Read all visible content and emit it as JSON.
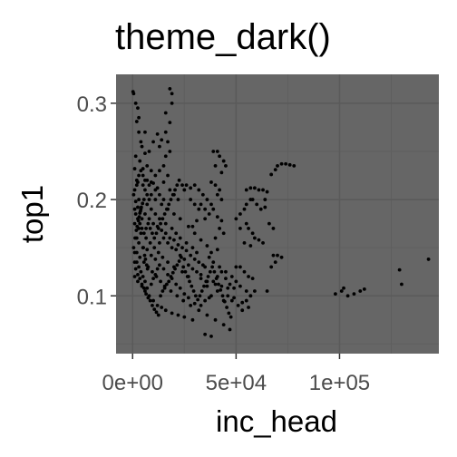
{
  "chart_data": {
    "type": "scatter",
    "title": "theme_dark()",
    "xlabel": "inc_head",
    "ylabel": "top1",
    "xlim": [
      -8000,
      148000
    ],
    "ylim": [
      0.04,
      0.33
    ],
    "x_ticks": [
      0,
      50000,
      100000
    ],
    "x_tick_labels": [
      "0e+00",
      "5e+04",
      "1e+05"
    ],
    "y_ticks": [
      0.1,
      0.2,
      0.3
    ],
    "y_tick_labels": [
      "0.1",
      "0.2",
      "0.3"
    ],
    "grid": true,
    "legend": "none",
    "colors": {
      "panel": "#666666",
      "grid_major": "#5a5a5a",
      "grid_minor": "#5f5f5f",
      "points": "#000000",
      "tick_text": "#4d4d4d",
      "axis_text": "#000000"
    },
    "points": [
      [
        200,
        0.312
      ],
      [
        500,
        0.31
      ],
      [
        2000,
        0.281
      ],
      [
        3000,
        0.27
      ],
      [
        4500,
        0.255
      ],
      [
        1500,
        0.245
      ],
      [
        3500,
        0.24
      ],
      [
        1000,
        0.232
      ],
      [
        5000,
        0.225
      ],
      [
        2500,
        0.218
      ],
      [
        6000,
        0.22
      ],
      [
        8000,
        0.215
      ],
      [
        10000,
        0.217
      ],
      [
        12000,
        0.212
      ],
      [
        15000,
        0.218
      ],
      [
        18000,
        0.21
      ],
      [
        20000,
        0.205
      ],
      [
        22000,
        0.2
      ],
      [
        25000,
        0.21
      ],
      [
        28000,
        0.2
      ],
      [
        30000,
        0.195
      ],
      [
        32000,
        0.19
      ],
      [
        35000,
        0.18
      ],
      [
        5500,
        0.2
      ],
      [
        7000,
        0.195
      ],
      [
        9000,
        0.19
      ],
      [
        11000,
        0.185
      ],
      [
        13000,
        0.18
      ],
      [
        16000,
        0.175
      ],
      [
        19000,
        0.17
      ],
      [
        21000,
        0.165
      ],
      [
        23000,
        0.16
      ],
      [
        26000,
        0.155
      ],
      [
        29000,
        0.15
      ],
      [
        31000,
        0.145
      ],
      [
        1000,
        0.175
      ],
      [
        3000,
        0.17
      ],
      [
        4000,
        0.165
      ],
      [
        6500,
        0.16
      ],
      [
        8500,
        0.155
      ],
      [
        10500,
        0.15
      ],
      [
        12500,
        0.145
      ],
      [
        14500,
        0.14
      ],
      [
        17000,
        0.135
      ],
      [
        20000,
        0.13
      ],
      [
        24000,
        0.125
      ],
      [
        27000,
        0.12
      ],
      [
        33000,
        0.118
      ],
      [
        36000,
        0.115
      ],
      [
        40000,
        0.112
      ],
      [
        43000,
        0.11
      ],
      [
        46000,
        0.108
      ],
      [
        500,
        0.15
      ],
      [
        2000,
        0.145
      ],
      [
        3500,
        0.14
      ],
      [
        5500,
        0.135
      ],
      [
        7500,
        0.13
      ],
      [
        9500,
        0.125
      ],
      [
        11500,
        0.12
      ],
      [
        13500,
        0.115
      ],
      [
        15500,
        0.11
      ],
      [
        18500,
        0.105
      ],
      [
        21500,
        0.1
      ],
      [
        24500,
        0.095
      ],
      [
        28000,
        0.09
      ],
      [
        32000,
        0.085
      ],
      [
        36000,
        0.08
      ],
      [
        40000,
        0.075
      ],
      [
        44000,
        0.07
      ],
      [
        47000,
        0.065
      ],
      [
        35000,
        0.06
      ],
      [
        38000,
        0.058
      ],
      [
        1000,
        0.12
      ],
      [
        2500,
        0.115
      ],
      [
        4500,
        0.11
      ],
      [
        6000,
        0.105
      ],
      [
        8000,
        0.1
      ],
      [
        10000,
        0.095
      ],
      [
        12000,
        0.09
      ],
      [
        14000,
        0.088
      ],
      [
        16000,
        0.085
      ],
      [
        19000,
        0.082
      ],
      [
        22000,
        0.08
      ],
      [
        25000,
        0.078
      ],
      [
        29000,
        0.075
      ],
      [
        1500,
        0.198
      ],
      [
        2500,
        0.192
      ],
      [
        3500,
        0.186
      ],
      [
        4500,
        0.18
      ],
      [
        500,
        0.205
      ],
      [
        1000,
        0.21
      ],
      [
        2000,
        0.215
      ],
      [
        9000,
        0.205
      ],
      [
        11000,
        0.2
      ],
      [
        14000,
        0.195
      ],
      [
        17000,
        0.19
      ],
      [
        20000,
        0.185
      ],
      [
        23000,
        0.18
      ],
      [
        27000,
        0.172
      ],
      [
        30000,
        0.165
      ],
      [
        33000,
        0.158
      ],
      [
        37000,
        0.14
      ],
      [
        39000,
        0.135
      ],
      [
        42000,
        0.13
      ],
      [
        45000,
        0.125
      ],
      [
        48000,
        0.12
      ],
      [
        50000,
        0.115
      ],
      [
        52000,
        0.11
      ],
      [
        55000,
        0.105
      ],
      [
        57000,
        0.1
      ],
      [
        49000,
        0.098
      ],
      [
        53000,
        0.093
      ],
      [
        56000,
        0.088
      ],
      [
        38000,
        0.1
      ],
      [
        41000,
        0.105
      ],
      [
        44000,
        0.095
      ],
      [
        39000,
        0.25
      ],
      [
        41000,
        0.25
      ],
      [
        42000,
        0.245
      ],
      [
        44000,
        0.24
      ],
      [
        45000,
        0.235
      ],
      [
        43000,
        0.228
      ],
      [
        40000,
        0.235
      ],
      [
        38000,
        0.218
      ],
      [
        40000,
        0.215
      ],
      [
        42000,
        0.21
      ],
      [
        41000,
        0.205
      ],
      [
        43000,
        0.2
      ],
      [
        38000,
        0.195
      ],
      [
        39000,
        0.19
      ],
      [
        41000,
        0.182
      ],
      [
        43000,
        0.178
      ],
      [
        42000,
        0.17
      ],
      [
        44000,
        0.165
      ],
      [
        40000,
        0.16
      ],
      [
        38000,
        0.145
      ],
      [
        36000,
        0.152
      ],
      [
        41000,
        0.148
      ],
      [
        36000,
        0.11
      ],
      [
        39000,
        0.115
      ],
      [
        41000,
        0.12
      ],
      [
        43000,
        0.125
      ],
      [
        45000,
        0.118
      ],
      [
        47000,
        0.112
      ],
      [
        49000,
        0.108
      ],
      [
        46000,
        0.1
      ],
      [
        48000,
        0.095
      ],
      [
        51000,
        0.09
      ],
      [
        53000,
        0.085
      ],
      [
        55000,
        0.095
      ],
      [
        50000,
        0.18
      ],
      [
        52000,
        0.185
      ],
      [
        54000,
        0.19
      ],
      [
        55000,
        0.195
      ],
      [
        57000,
        0.2
      ],
      [
        58000,
        0.2
      ],
      [
        60000,
        0.195
      ],
      [
        62000,
        0.19
      ],
      [
        64000,
        0.192
      ],
      [
        55000,
        0.175
      ],
      [
        56000,
        0.17
      ],
      [
        58000,
        0.165
      ],
      [
        59000,
        0.16
      ],
      [
        61000,
        0.158
      ],
      [
        63000,
        0.155
      ],
      [
        54000,
        0.155
      ],
      [
        57000,
        0.152
      ],
      [
        52000,
        0.17
      ],
      [
        55000,
        0.21
      ],
      [
        57000,
        0.212
      ],
      [
        59000,
        0.212
      ],
      [
        61000,
        0.21
      ],
      [
        63000,
        0.21
      ],
      [
        65000,
        0.208
      ],
      [
        56000,
        0.12
      ],
      [
        58000,
        0.118
      ],
      [
        54000,
        0.125
      ],
      [
        52000,
        0.13
      ],
      [
        50000,
        0.13
      ],
      [
        59000,
        0.105
      ],
      [
        57000,
        0.1
      ],
      [
        65000,
        0.105
      ],
      [
        70000,
        0.235
      ],
      [
        72000,
        0.237
      ],
      [
        74000,
        0.237
      ],
      [
        76000,
        0.236
      ],
      [
        78000,
        0.235
      ],
      [
        69000,
        0.231
      ],
      [
        67000,
        0.226
      ],
      [
        68000,
        0.142
      ],
      [
        70000,
        0.142
      ],
      [
        72000,
        0.14
      ],
      [
        67000,
        0.13
      ],
      [
        69000,
        0.135
      ],
      [
        64000,
        0.2
      ],
      [
        66000,
        0.175
      ],
      [
        68000,
        0.17
      ],
      [
        98000,
        0.102
      ],
      [
        101000,
        0.105
      ],
      [
        102000,
        0.108
      ],
      [
        104000,
        0.1
      ],
      [
        107000,
        0.102
      ],
      [
        110000,
        0.105
      ],
      [
        112000,
        0.107
      ],
      [
        129000,
        0.127
      ],
      [
        130000,
        0.112
      ],
      [
        143000,
        0.138
      ],
      [
        1000,
        0.145
      ],
      [
        2000,
        0.135
      ],
      [
        3000,
        0.13
      ],
      [
        4000,
        0.125
      ],
      [
        5000,
        0.12
      ],
      [
        6000,
        0.115
      ],
      [
        7000,
        0.108
      ],
      [
        9000,
        0.112
      ],
      [
        10000,
        0.118
      ],
      [
        11000,
        0.122
      ],
      [
        12000,
        0.128
      ],
      [
        13000,
        0.132
      ],
      [
        15000,
        0.128
      ],
      [
        17000,
        0.122
      ],
      [
        19000,
        0.118
      ],
      [
        21000,
        0.112
      ],
      [
        23000,
        0.108
      ],
      [
        25000,
        0.102
      ],
      [
        27000,
        0.098
      ],
      [
        30000,
        0.092
      ],
      [
        33000,
        0.09
      ],
      [
        35000,
        0.095
      ],
      [
        37000,
        0.098
      ],
      [
        2000,
        0.16
      ],
      [
        3000,
        0.155
      ],
      [
        5000,
        0.15
      ],
      [
        7000,
        0.148
      ],
      [
        9000,
        0.142
      ],
      [
        11000,
        0.138
      ],
      [
        13000,
        0.155
      ],
      [
        15000,
        0.16
      ],
      [
        17000,
        0.155
      ],
      [
        19000,
        0.15
      ],
      [
        21000,
        0.148
      ],
      [
        23000,
        0.142
      ],
      [
        25000,
        0.138
      ],
      [
        27000,
        0.132
      ],
      [
        29000,
        0.128
      ],
      [
        31000,
        0.125
      ],
      [
        33000,
        0.122
      ],
      [
        35000,
        0.13
      ],
      [
        4000,
        0.19
      ],
      [
        6000,
        0.185
      ],
      [
        8000,
        0.18
      ],
      [
        10000,
        0.175
      ],
      [
        12000,
        0.172
      ],
      [
        14000,
        0.168
      ],
      [
        16000,
        0.165
      ],
      [
        18000,
        0.16
      ],
      [
        20000,
        0.158
      ],
      [
        22000,
        0.153
      ],
      [
        24000,
        0.15
      ],
      [
        26000,
        0.147
      ],
      [
        28000,
        0.142
      ],
      [
        30000,
        0.138
      ],
      [
        32000,
        0.135
      ],
      [
        34000,
        0.132
      ],
      [
        7000,
        0.235
      ],
      [
        9000,
        0.23
      ],
      [
        11000,
        0.225
      ],
      [
        13000,
        0.23
      ],
      [
        15000,
        0.235
      ],
      [
        17000,
        0.225
      ],
      [
        16000,
        0.245
      ],
      [
        18000,
        0.25
      ],
      [
        17000,
        0.26
      ],
      [
        16000,
        0.27
      ],
      [
        18000,
        0.28
      ],
      [
        16000,
        0.29
      ],
      [
        19000,
        0.3
      ],
      [
        19000,
        0.31
      ],
      [
        18000,
        0.315
      ],
      [
        14000,
        0.262
      ],
      [
        13000,
        0.255
      ],
      [
        12000,
        0.268
      ],
      [
        10000,
        0.26
      ],
      [
        8000,
        0.25
      ],
      [
        6000,
        0.248
      ],
      [
        4000,
        0.26
      ],
      [
        6000,
        0.27
      ],
      [
        3000,
        0.285
      ],
      [
        1500,
        0.3
      ],
      [
        2500,
        0.295
      ],
      [
        24000,
        0.215
      ],
      [
        26000,
        0.215
      ],
      [
        28000,
        0.212
      ],
      [
        30000,
        0.215
      ],
      [
        32000,
        0.21
      ],
      [
        34000,
        0.205
      ],
      [
        36000,
        0.2
      ],
      [
        33000,
        0.195
      ],
      [
        35000,
        0.19
      ],
      [
        37000,
        0.185
      ],
      [
        31000,
        0.178
      ],
      [
        29000,
        0.172
      ],
      [
        2000,
        0.22
      ],
      [
        3000,
        0.225
      ],
      [
        4000,
        0.23
      ],
      [
        5000,
        0.232
      ],
      [
        6000,
        0.21
      ],
      [
        7000,
        0.205
      ],
      [
        8000,
        0.2
      ],
      [
        1000,
        0.19
      ],
      [
        1500,
        0.185
      ],
      [
        2500,
        0.18
      ],
      [
        3500,
        0.175
      ],
      [
        4500,
        0.17
      ],
      [
        5500,
        0.165
      ],
      [
        6500,
        0.17
      ],
      [
        7500,
        0.175
      ],
      [
        8500,
        0.17
      ],
      [
        9500,
        0.165
      ],
      [
        10500,
        0.16
      ],
      [
        11500,
        0.165
      ],
      [
        12500,
        0.17
      ],
      [
        13500,
        0.175
      ],
      [
        14500,
        0.18
      ],
      [
        15500,
        0.185
      ],
      [
        16500,
        0.19
      ],
      [
        17500,
        0.195
      ],
      [
        18500,
        0.2
      ],
      [
        19500,
        0.205
      ],
      [
        20500,
        0.21
      ],
      [
        21500,
        0.215
      ],
      [
        22500,
        0.22
      ],
      [
        1000,
        0.135
      ],
      [
        1500,
        0.128
      ],
      [
        2500,
        0.122
      ],
      [
        3500,
        0.118
      ],
      [
        4500,
        0.112
      ],
      [
        5500,
        0.108
      ],
      [
        6500,
        0.102
      ],
      [
        7500,
        0.098
      ],
      [
        8500,
        0.095
      ],
      [
        9500,
        0.09
      ],
      [
        10500,
        0.086
      ],
      [
        11500,
        0.083
      ],
      [
        12500,
        0.08
      ],
      [
        13500,
        0.1
      ],
      [
        14500,
        0.105
      ],
      [
        15500,
        0.108
      ],
      [
        16500,
        0.112
      ],
      [
        17500,
        0.115
      ],
      [
        18500,
        0.12
      ],
      [
        19500,
        0.124
      ],
      [
        20500,
        0.128
      ],
      [
        21500,
        0.132
      ],
      [
        22500,
        0.136
      ],
      [
        23500,
        0.14
      ],
      [
        24500,
        0.13
      ],
      [
        25500,
        0.125
      ],
      [
        26500,
        0.12
      ],
      [
        27500,
        0.115
      ],
      [
        28500,
        0.11
      ],
      [
        29500,
        0.105
      ],
      [
        30500,
        0.1
      ],
      [
        31500,
        0.096
      ],
      [
        32500,
        0.1
      ],
      [
        33500,
        0.105
      ],
      [
        34500,
        0.11
      ],
      [
        35500,
        0.115
      ],
      [
        36500,
        0.12
      ],
      [
        37500,
        0.125
      ],
      [
        38500,
        0.13
      ],
      [
        39500,
        0.125
      ],
      [
        40500,
        0.118
      ],
      [
        41500,
        0.112
      ],
      [
        42500,
        0.106
      ],
      [
        43500,
        0.1
      ],
      [
        44500,
        0.094
      ],
      [
        45500,
        0.088
      ],
      [
        46500,
        0.082
      ],
      [
        47500,
        0.078
      ],
      [
        3000,
        0.2
      ],
      [
        5000,
        0.215
      ],
      [
        7000,
        0.22
      ],
      [
        9000,
        0.218
      ],
      [
        11000,
        0.21
      ],
      [
        13000,
        0.205
      ],
      [
        15000,
        0.2
      ],
      [
        1200,
        0.16
      ],
      [
        1800,
        0.168
      ],
      [
        2200,
        0.172
      ],
      [
        2800,
        0.178
      ],
      [
        3200,
        0.182
      ],
      [
        3800,
        0.188
      ],
      [
        4200,
        0.192
      ],
      [
        4800,
        0.196
      ],
      [
        5200,
        0.15
      ],
      [
        5800,
        0.142
      ],
      [
        6200,
        0.138
      ],
      [
        6800,
        0.132
      ],
      [
        7200,
        0.128
      ]
    ]
  }
}
